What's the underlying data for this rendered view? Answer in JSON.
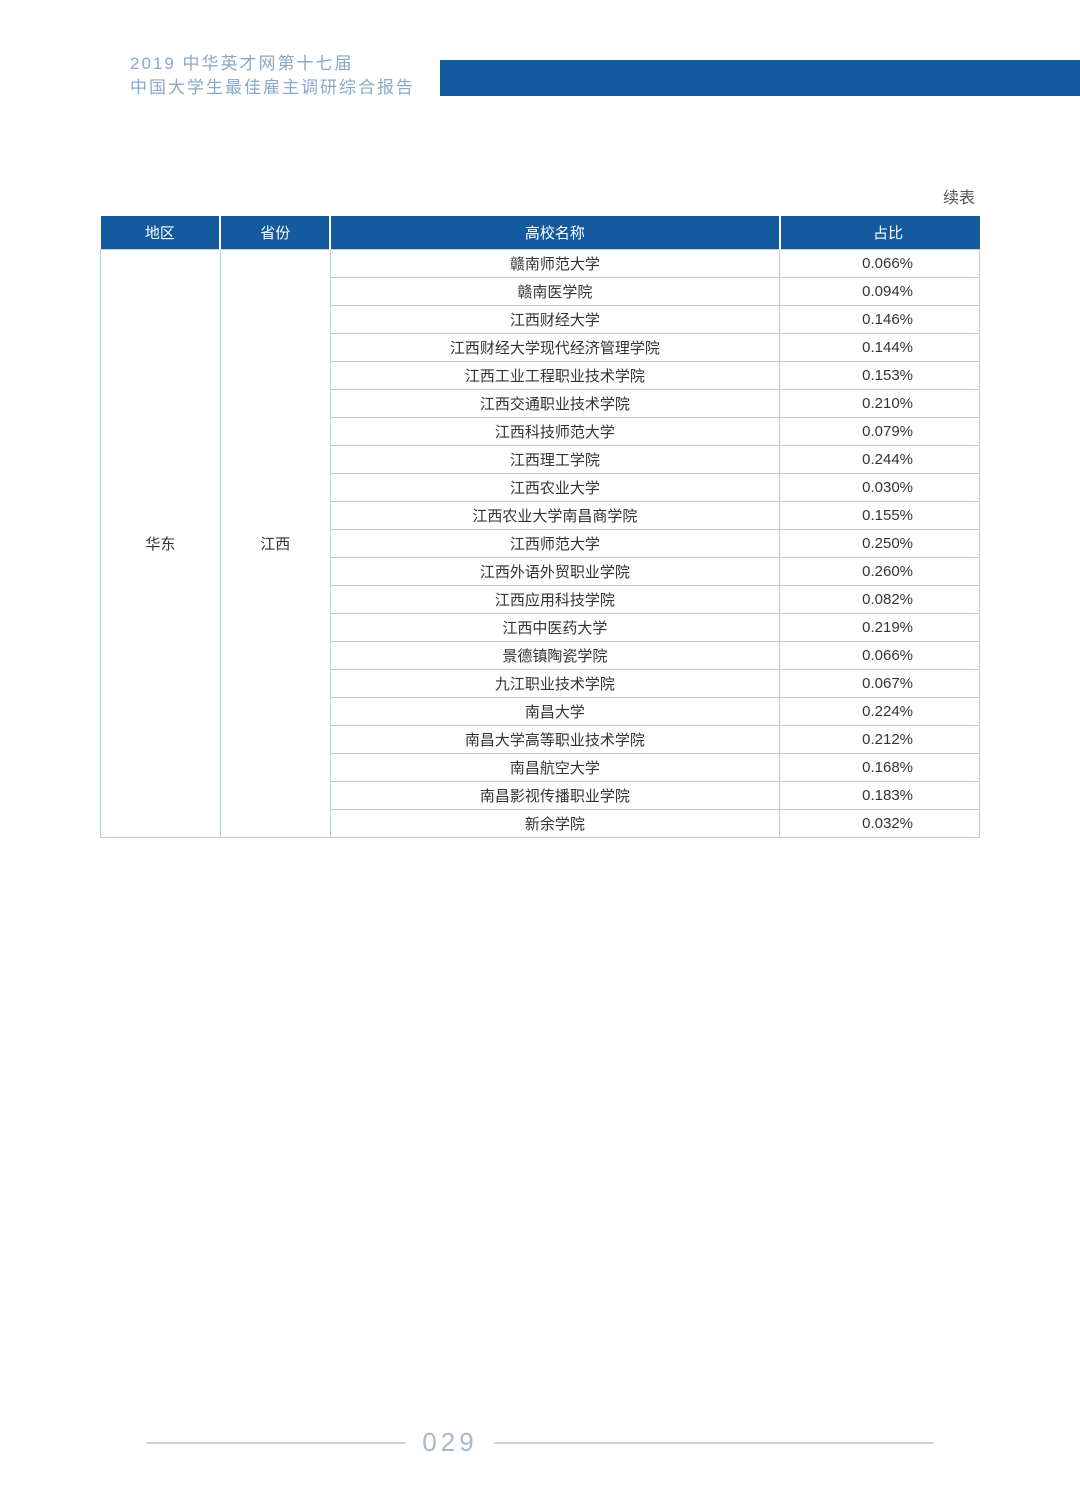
{
  "header": {
    "line1": "2019 中华英才网第十七届",
    "line2": "中国大学生最佳雇主调研综合报告"
  },
  "continued_label": "续表",
  "table": {
    "columns": [
      "地区",
      "省份",
      "高校名称",
      "占比"
    ],
    "region": "华东",
    "province": "江西",
    "rows": [
      {
        "school": "赣南师范大学",
        "ratio": "0.066%"
      },
      {
        "school": "赣南医学院",
        "ratio": "0.094%"
      },
      {
        "school": "江西财经大学",
        "ratio": "0.146%"
      },
      {
        "school": "江西财经大学现代经济管理学院",
        "ratio": "0.144%"
      },
      {
        "school": "江西工业工程职业技术学院",
        "ratio": "0.153%"
      },
      {
        "school": "江西交通职业技术学院",
        "ratio": "0.210%"
      },
      {
        "school": "江西科技师范大学",
        "ratio": "0.079%"
      },
      {
        "school": "江西理工学院",
        "ratio": "0.244%"
      },
      {
        "school": "江西农业大学",
        "ratio": "0.030%"
      },
      {
        "school": "江西农业大学南昌商学院",
        "ratio": "0.155%"
      },
      {
        "school": "江西师范大学",
        "ratio": "0.250%"
      },
      {
        "school": "江西外语外贸职业学院",
        "ratio": "0.260%"
      },
      {
        "school": "江西应用科技学院",
        "ratio": "0.082%"
      },
      {
        "school": "江西中医药大学",
        "ratio": "0.219%"
      },
      {
        "school": "景德镇陶瓷学院",
        "ratio": "0.066%"
      },
      {
        "school": "九江职业技术学院",
        "ratio": "0.067%"
      },
      {
        "school": "南昌大学",
        "ratio": "0.224%"
      },
      {
        "school": "南昌大学高等职业技术学院",
        "ratio": "0.212%"
      },
      {
        "school": "南昌航空大学",
        "ratio": "0.168%"
      },
      {
        "school": "南昌影视传播职业学院",
        "ratio": "0.183%"
      },
      {
        "school": "新余学院",
        "ratio": "0.032%"
      }
    ]
  },
  "page_number": "029",
  "colors": {
    "header_bar": "#145a9e",
    "header_text": "#8aa8c8",
    "table_header_bg": "#145a9e",
    "table_border": "#b8cde0",
    "page_num": "#a8b8c8"
  }
}
